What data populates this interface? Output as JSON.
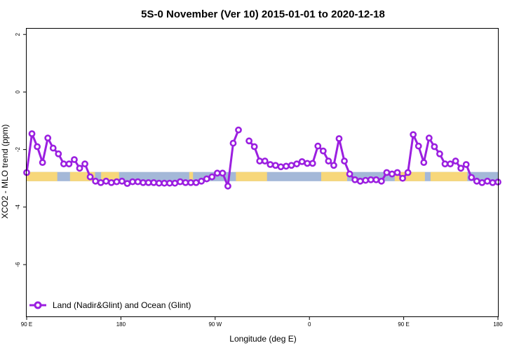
{
  "chart_data": {
    "type": "line",
    "title": "5S-0 November (Ver 10)   2015-01-01 to 2020-12-18",
    "xlabel": "Longitude (deg E)",
    "ylabel": "XCO2 - MLO trend (ppm)",
    "xlim": [
      0,
      1
    ],
    "ylim": [
      -7.8,
      2.2
    ],
    "x_tick_labels": [
      "90 E",
      "180",
      "90 W",
      "0",
      "90 E",
      "180"
    ],
    "y_ticks": [
      2,
      0,
      -2,
      -4,
      -6
    ],
    "grid": false,
    "legend_position": "bottom-left",
    "series": [
      {
        "name": "Land (Nadir&Glint) and Ocean (Glint)",
        "color": "#9B1FE0",
        "y": [
          -2.8,
          -1.45,
          -1.9,
          -2.45,
          -1.6,
          -1.95,
          -2.15,
          -2.5,
          -2.5,
          -2.35,
          -2.65,
          -2.5,
          -2.95,
          -3.1,
          -3.15,
          -3.1,
          -3.15,
          -3.12,
          -3.1,
          -3.18,
          -3.12,
          -3.12,
          -3.15,
          -3.15,
          -3.15,
          -3.17,
          -3.17,
          -3.17,
          -3.17,
          -3.12,
          -3.15,
          -3.15,
          -3.15,
          -3.1,
          -3.02,
          -2.95,
          -2.82,
          -2.82,
          -3.27,
          -1.78,
          -1.32,
          null,
          -1.7,
          -1.9,
          -2.4,
          -2.4,
          -2.52,
          -2.55,
          -2.6,
          -2.58,
          -2.55,
          -2.5,
          -2.42,
          -2.48,
          -2.48,
          -1.88,
          -2.05,
          -2.4,
          -2.55,
          -1.62,
          -2.4,
          -2.85,
          -3.05,
          -3.1,
          -3.07,
          -3.05,
          -3.05,
          -3.1,
          -2.8,
          -2.85,
          -2.8,
          -3.0,
          -2.8,
          -1.48,
          -1.88,
          -2.45,
          -1.6,
          -1.9,
          -2.15,
          -2.5,
          -2.5,
          -2.4,
          -2.65,
          -2.52,
          -2.97,
          -3.1,
          -3.15,
          -3.1,
          -3.15,
          -3.13
        ]
      }
    ],
    "surface_band": {
      "y_range": [
        -3.1,
        -2.78
      ],
      "ocean_color": "#A4B8D8",
      "land_color": "#F7D77A",
      "land_segments": [
        [
          0.0,
          0.065
        ],
        [
          0.092,
          0.145
        ],
        [
          0.158,
          0.196
        ],
        [
          0.345,
          0.353
        ],
        [
          0.444,
          0.51
        ],
        [
          0.625,
          0.68
        ],
        [
          0.781,
          0.845
        ],
        [
          0.857,
          0.935
        ]
      ]
    }
  }
}
